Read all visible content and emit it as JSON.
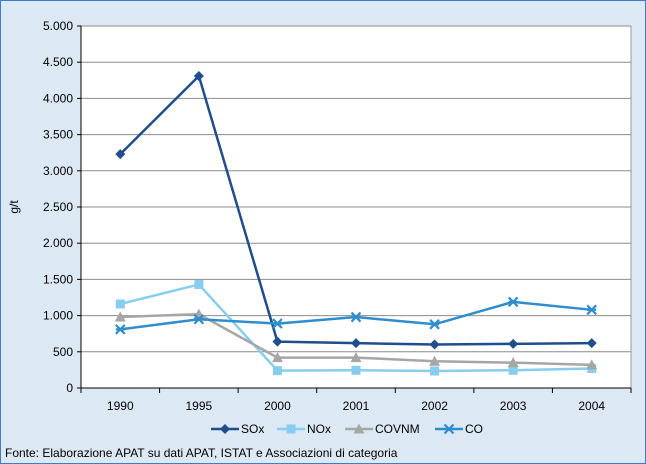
{
  "chart_data": {
    "type": "line",
    "title": "",
    "xlabel": "",
    "ylabel": "g/t",
    "categories": [
      "1990",
      "1995",
      "2000",
      "2001",
      "2002",
      "2003",
      "2004"
    ],
    "ylim": [
      0,
      5000
    ],
    "yticks": [
      0,
      500,
      1000,
      1500,
      2000,
      2500,
      3000,
      3500,
      4000,
      4500,
      5000
    ],
    "ytick_labels": [
      "0",
      "500",
      "1.000",
      "1.500",
      "2.000",
      "2.500",
      "3.000",
      "3.500",
      "4.000",
      "4.500",
      "5.000"
    ],
    "grid": true,
    "legend_position": "bottom",
    "series": [
      {
        "name": "SOx",
        "color": "#1f4e8c",
        "marker": "diamond",
        "values": [
          3230,
          4310,
          640,
          620,
          600,
          610,
          620
        ]
      },
      {
        "name": "NOx",
        "color": "#87cdf0",
        "marker": "square",
        "values": [
          1160,
          1430,
          240,
          245,
          235,
          245,
          270
        ]
      },
      {
        "name": "COVNM",
        "color": "#a6a6a6",
        "marker": "triangle",
        "values": [
          980,
          1020,
          420,
          420,
          370,
          350,
          320
        ]
      },
      {
        "name": "CO",
        "color": "#2e8dcc",
        "marker": "x",
        "values": [
          810,
          950,
          890,
          980,
          880,
          1190,
          1080
        ]
      }
    ]
  },
  "source_note": "Fonte: Elaborazione APAT su dati APAT, ISTAT e Associazioni di categoria"
}
